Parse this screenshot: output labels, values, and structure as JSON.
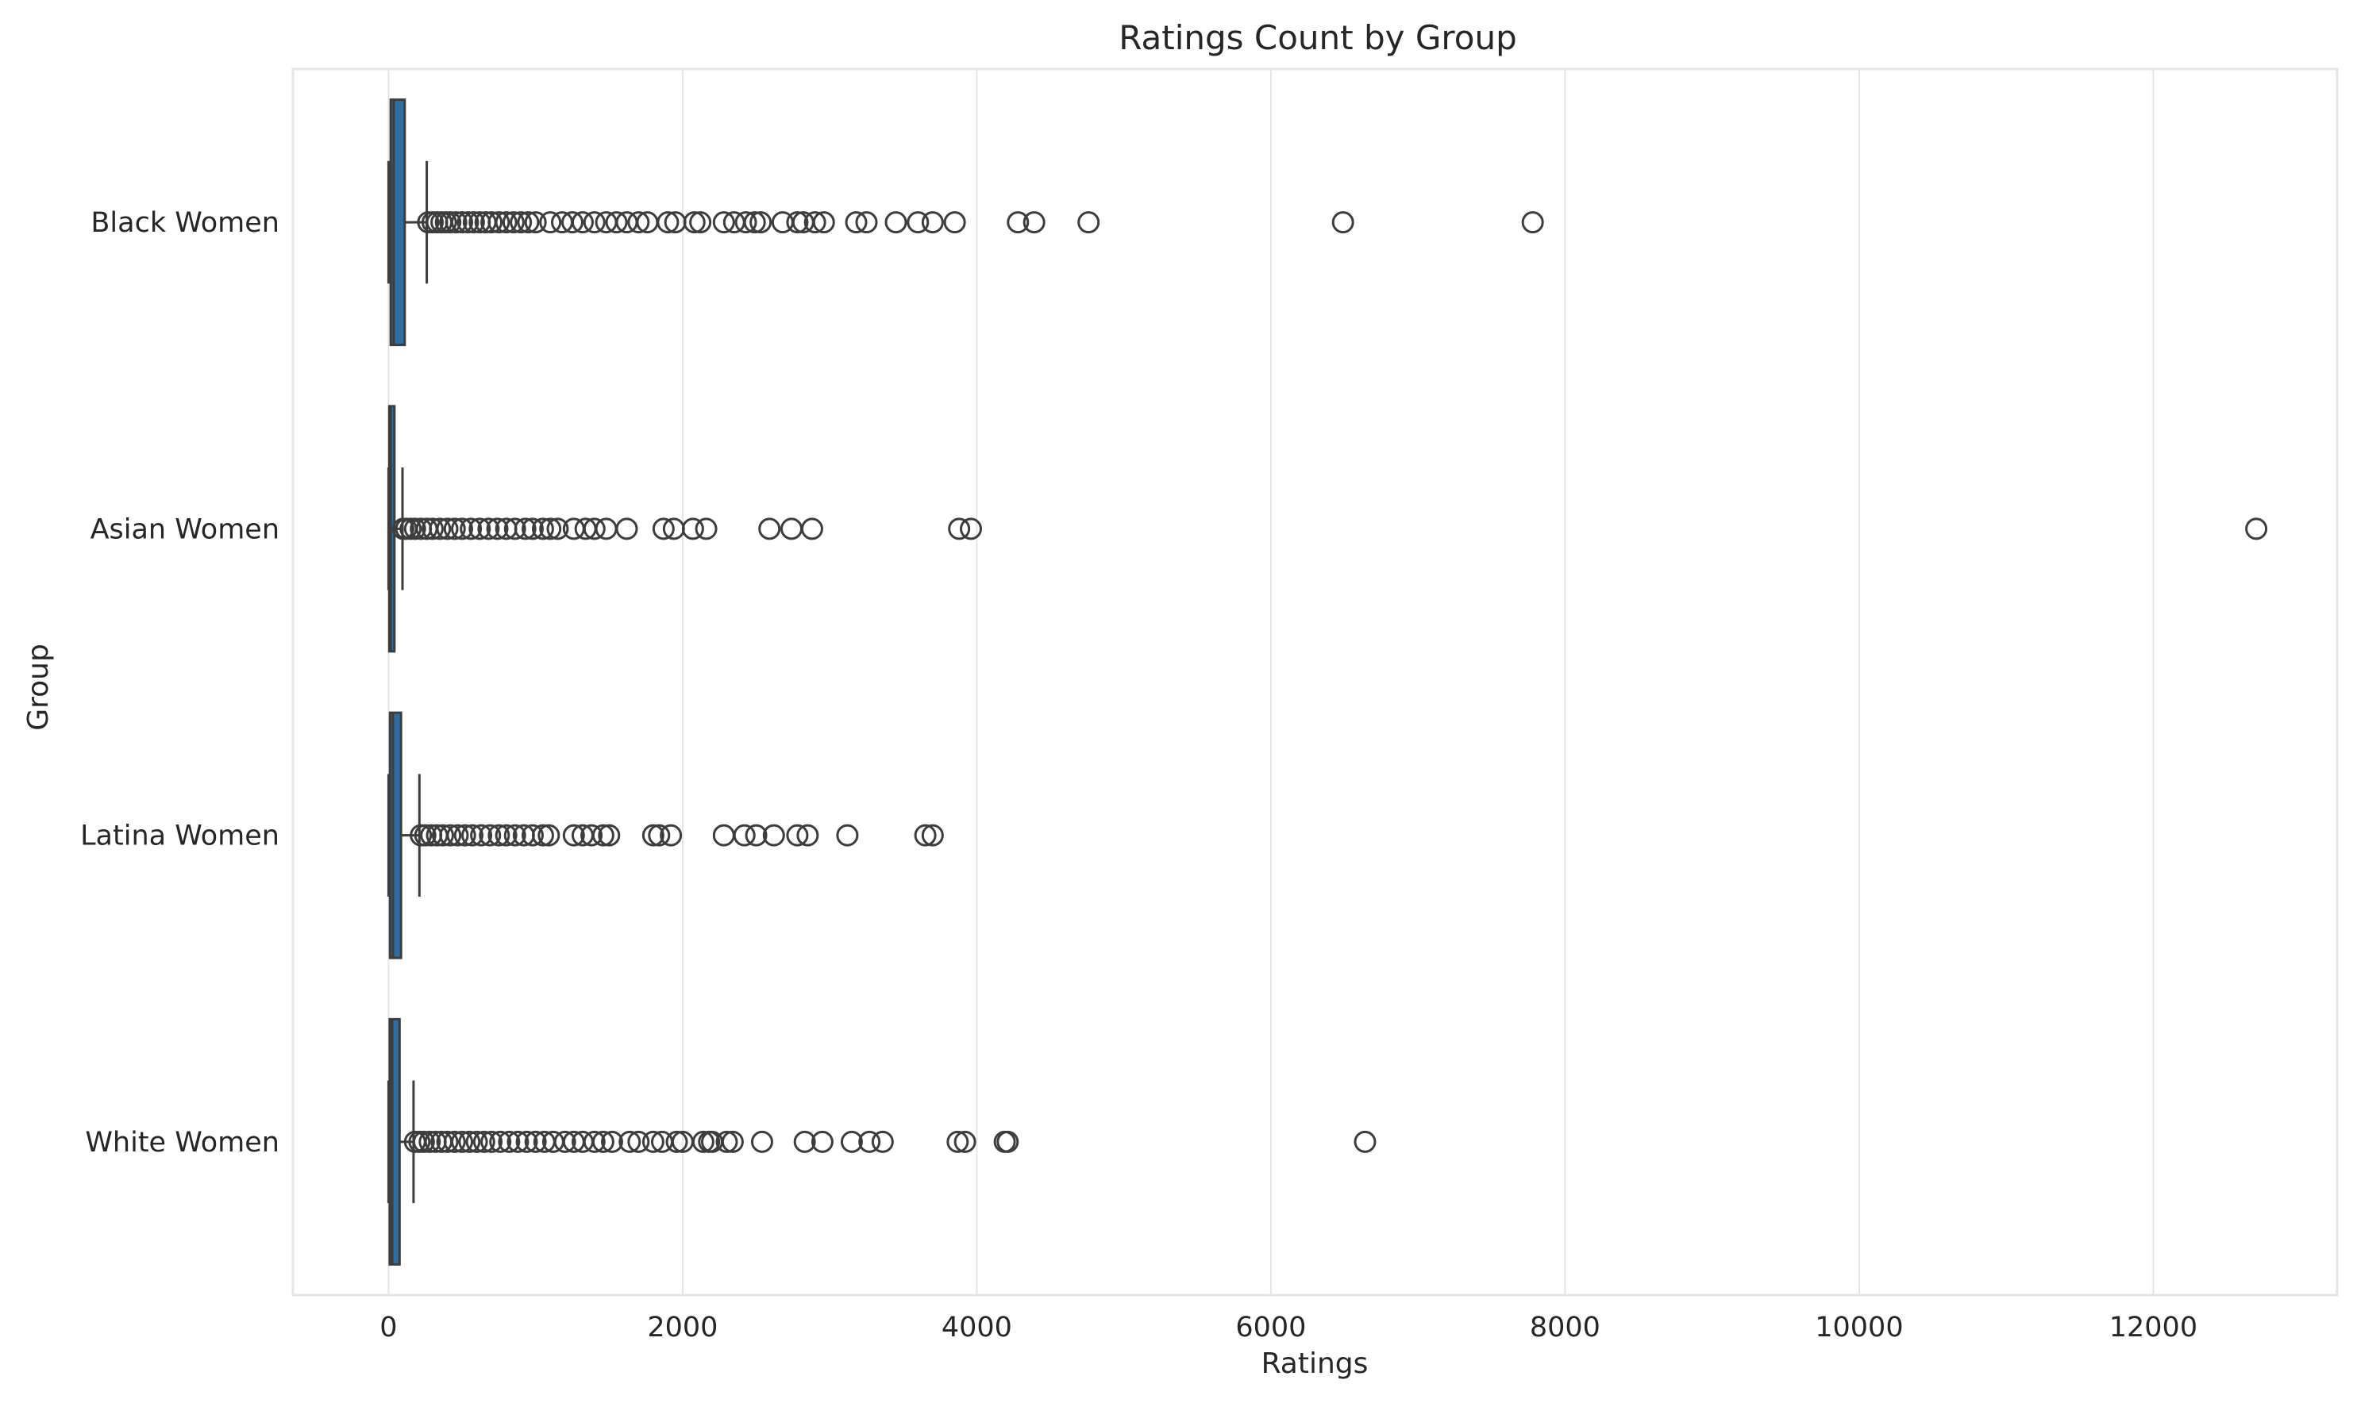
{
  "chart_data": {
    "type": "box",
    "title": "Ratings Count by Group",
    "xlabel": "Ratings",
    "ylabel": "Group",
    "orientation": "horizontal",
    "xlim": [
      -650,
      13250
    ],
    "xticks": [
      0,
      2000,
      4000,
      6000,
      8000,
      10000,
      12000
    ],
    "grid": "vertical",
    "box_color": "#2f6ea2",
    "categories": [
      "Black Women",
      "Asian Women",
      "Latina Women",
      "White Women"
    ],
    "boxes": [
      {
        "group": "Black Women",
        "min": 0,
        "q1": 15,
        "median": 35,
        "q3": 110,
        "max": 260,
        "outliers": [
          270,
          300,
          330,
          360,
          390,
          420,
          460,
          500,
          540,
          580,
          620,
          660,
          700,
          750,
          800,
          850,
          900,
          950,
          1000,
          1100,
          1180,
          1250,
          1320,
          1400,
          1480,
          1550,
          1620,
          1700,
          1760,
          1900,
          1950,
          2080,
          2120,
          2280,
          2350,
          2430,
          2490,
          2530,
          2680,
          2780,
          2820,
          2900,
          2960,
          3180,
          3250,
          3450,
          3600,
          3700,
          3850,
          4280,
          4390,
          4760,
          6490,
          7780
        ]
      },
      {
        "group": "Asian Women",
        "min": 0,
        "q1": 5,
        "median": 15,
        "q3": 40,
        "max": 95,
        "outliers": [
          100,
          120,
          150,
          180,
          220,
          260,
          300,
          350,
          400,
          450,
          500,
          560,
          620,
          680,
          740,
          800,
          860,
          930,
          980,
          1050,
          1100,
          1150,
          1260,
          1340,
          1400,
          1480,
          1620,
          1870,
          1940,
          2070,
          2160,
          2590,
          2740,
          2880,
          3880,
          3960,
          12700
        ]
      },
      {
        "group": "Latina Women",
        "min": 0,
        "q1": 10,
        "median": 30,
        "q3": 85,
        "max": 210,
        "outliers": [
          220,
          250,
          290,
          330,
          370,
          420,
          470,
          520,
          570,
          630,
          690,
          750,
          800,
          860,
          920,
          980,
          1050,
          1090,
          1260,
          1320,
          1380,
          1460,
          1500,
          1800,
          1840,
          1920,
          2280,
          2420,
          2500,
          2620,
          2780,
          2850,
          3120,
          3650,
          3700
        ]
      },
      {
        "group": "White Women",
        "min": 0,
        "q1": 8,
        "median": 25,
        "q3": 75,
        "max": 170,
        "outliers": [
          180,
          210,
          240,
          280,
          320,
          360,
          400,
          450,
          500,
          550,
          600,
          650,
          700,
          760,
          820,
          880,
          940,
          1000,
          1060,
          1120,
          1200,
          1260,
          1320,
          1400,
          1460,
          1520,
          1640,
          1700,
          1800,
          1860,
          1960,
          2000,
          2140,
          2180,
          2200,
          2300,
          2340,
          2540,
          2830,
          2950,
          3150,
          3270,
          3360,
          3870,
          3920,
          4190,
          4210,
          6640
        ]
      }
    ]
  }
}
